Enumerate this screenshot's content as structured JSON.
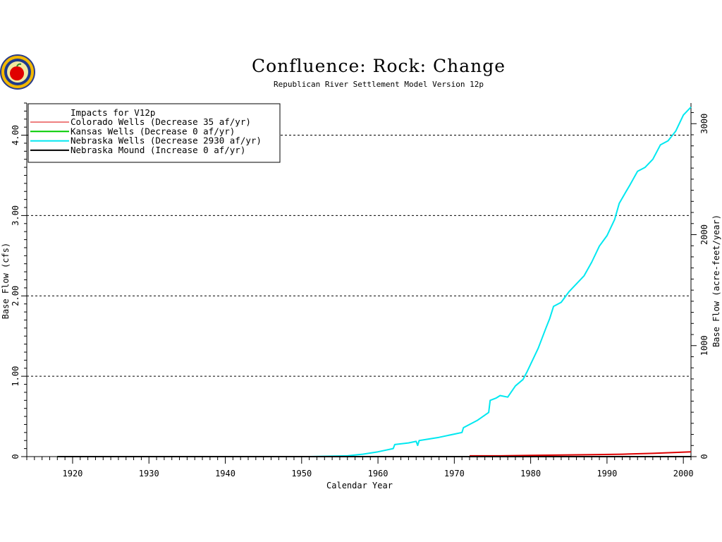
{
  "logo_icon": "seal-logo-icon",
  "chart_data": {
    "type": "line",
    "title": "Confluence: Rock: Change",
    "subtitle": "Republican River Settlement Model Version 12p",
    "xlabel": "Calendar Year",
    "ylabel_left": "Base Flow (cfs)",
    "ylabel_right": "Base Flow (acre-feet/year)",
    "xlim": [
      1914,
      2001
    ],
    "ylim": [
      0,
      4.4
    ],
    "y2lim": [
      0,
      3186
    ],
    "x_ticks": [
      1920,
      1930,
      1940,
      1950,
      1960,
      1970,
      1980,
      1990,
      2000
    ],
    "y_ticks": [
      0,
      1,
      2,
      3,
      4
    ],
    "y_tick_labels": [
      "0",
      "1.00",
      "2.00",
      "3.00",
      "4.00"
    ],
    "y2_ticks": [
      0,
      1000,
      2000,
      3000
    ],
    "y2_tick_labels": [
      "0",
      "1000",
      "2000",
      "3000"
    ],
    "grid": "dashed horizontal at 1.00, 2.00, 3.00, 4.00",
    "legend_placement": "top-left",
    "legend_title": "Impacts for V12p",
    "series": [
      {
        "name": "Colorado Wells",
        "legend_text": "Colorado Wells   (Decrease    35  af/yr)",
        "color": "#dd0000",
        "points": [
          [
            1972,
            0.01
          ],
          [
            1976,
            0.01
          ],
          [
            1980,
            0.015
          ],
          [
            1984,
            0.02
          ],
          [
            1988,
            0.025
          ],
          [
            1992,
            0.03
          ],
          [
            1996,
            0.04
          ],
          [
            2001,
            0.06
          ]
        ]
      },
      {
        "name": "Kansas Wells",
        "legend_text": "Kansas Wells     (Decrease     0  af/yr)",
        "color": "#00cc00",
        "points": [
          [
            1918,
            0
          ],
          [
            2001,
            0
          ]
        ]
      },
      {
        "name": "Nebraska Wells",
        "legend_text": "Nebraska Wells   (Decrease  2930  af/yr)",
        "color": "#00e8f0",
        "points": [
          [
            1951,
            0
          ],
          [
            1956,
            0.01
          ],
          [
            1958,
            0.03
          ],
          [
            1960,
            0.06
          ],
          [
            1962,
            0.1
          ],
          [
            1962.2,
            0.15
          ],
          [
            1964,
            0.17
          ],
          [
            1965,
            0.19
          ],
          [
            1965.2,
            0.14
          ],
          [
            1965.4,
            0.2
          ],
          [
            1968,
            0.24
          ],
          [
            1970,
            0.28
          ],
          [
            1971,
            0.3
          ],
          [
            1971.2,
            0.36
          ],
          [
            1973,
            0.45
          ],
          [
            1974.5,
            0.55
          ],
          [
            1974.7,
            0.7
          ],
          [
            1975.5,
            0.73
          ],
          [
            1976,
            0.76
          ],
          [
            1977,
            0.74
          ],
          [
            1978,
            0.88
          ],
          [
            1979,
            0.96
          ],
          [
            1979.5,
            1.05
          ],
          [
            1980,
            1.15
          ],
          [
            1981,
            1.35
          ],
          [
            1982,
            1.6
          ],
          [
            1982.5,
            1.72
          ],
          [
            1983,
            1.87
          ],
          [
            1984,
            1.92
          ],
          [
            1985,
            2.05
          ],
          [
            1987,
            2.25
          ],
          [
            1988,
            2.42
          ],
          [
            1989,
            2.62
          ],
          [
            1990,
            2.75
          ],
          [
            1991,
            2.95
          ],
          [
            1991.6,
            3.15
          ],
          [
            1992.5,
            3.3
          ],
          [
            1993,
            3.38
          ],
          [
            1994,
            3.55
          ],
          [
            1995,
            3.6
          ],
          [
            1996,
            3.7
          ],
          [
            1997,
            3.88
          ],
          [
            1998,
            3.93
          ],
          [
            1999,
            4.05
          ],
          [
            2000,
            4.25
          ],
          [
            2001,
            4.35
          ]
        ]
      },
      {
        "name": "Nebraska Mound",
        "legend_text": "Nebraska Mound  (Increase      0  af/yr)",
        "color": "#000000",
        "points": [
          [
            1918,
            0
          ],
          [
            2001,
            0
          ]
        ]
      }
    ]
  }
}
